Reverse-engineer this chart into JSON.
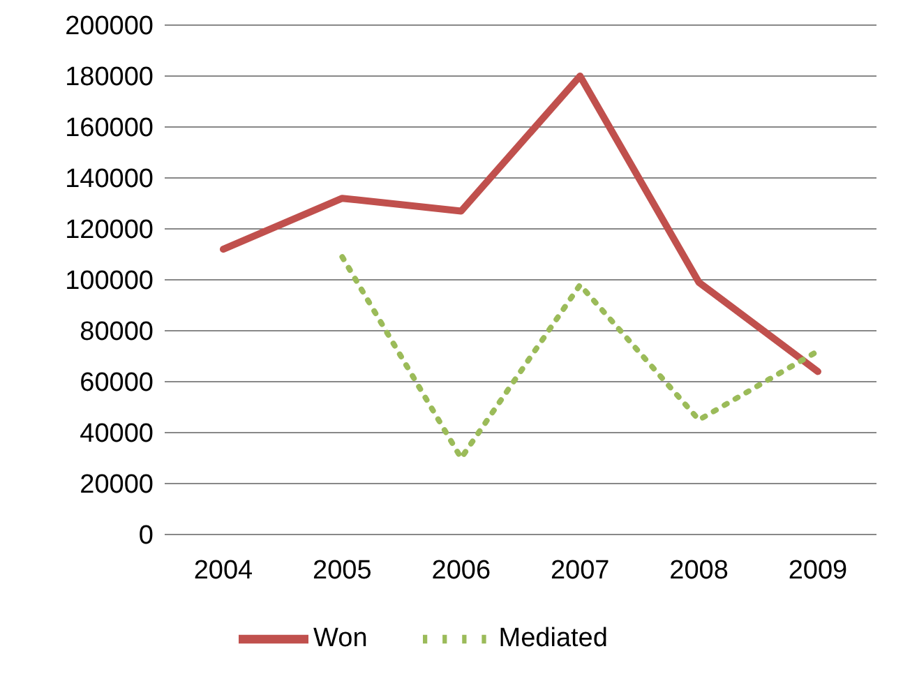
{
  "chart_data": {
    "type": "line",
    "categories": [
      "2004",
      "2005",
      "2006",
      "2007",
      "2008",
      "2009"
    ],
    "series": [
      {
        "name": "Won",
        "color": "#c0504d",
        "values": [
          112000,
          132000,
          127000,
          180000,
          99000,
          64000
        ],
        "line_style": "solid"
      },
      {
        "name": "Mediated",
        "color": "#9bbb59",
        "values": [
          null,
          109000,
          30000,
          98000,
          45000,
          72000
        ],
        "line_style": "dotted"
      }
    ],
    "ylim": [
      0,
      200000
    ],
    "yticks": [
      0,
      20000,
      40000,
      60000,
      80000,
      100000,
      120000,
      140000,
      160000,
      180000,
      200000
    ],
    "grid": "y",
    "legend": "bottom",
    "marker": "none"
  }
}
